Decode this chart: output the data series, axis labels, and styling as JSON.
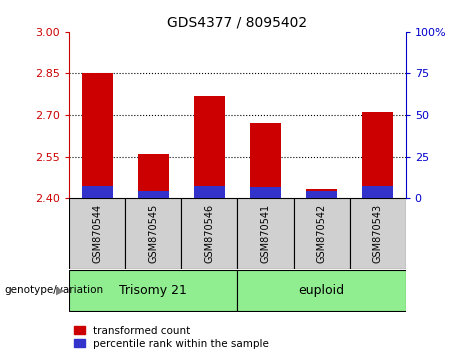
{
  "title": "GDS4377 / 8095402",
  "categories": [
    "GSM870544",
    "GSM870545",
    "GSM870546",
    "GSM870541",
    "GSM870542",
    "GSM870543"
  ],
  "red_tops": [
    2.85,
    2.56,
    2.77,
    2.67,
    2.435,
    2.71
  ],
  "blue_tops": [
    2.445,
    2.425,
    2.445,
    2.44,
    2.425,
    2.445
  ],
  "base": 2.4,
  "ylim_left": [
    2.4,
    3.0
  ],
  "ylim_right": [
    0,
    100
  ],
  "yticks_left": [
    2.4,
    2.55,
    2.7,
    2.85,
    3.0
  ],
  "yticks_right": [
    0,
    25,
    50,
    75,
    100
  ],
  "ytick_labels_right": [
    "0",
    "25",
    "50",
    "75",
    "100%"
  ],
  "red_color": "#cc0000",
  "blue_color": "#3333cc",
  "bar_width": 0.55,
  "groups": [
    {
      "label": "Trisomy 21",
      "indices": [
        0,
        1,
        2
      ],
      "color": "#90ee90"
    },
    {
      "label": "euploid",
      "indices": [
        3,
        4,
        5
      ],
      "color": "#90ee90"
    }
  ],
  "group_label_prefix": "genotype/variation",
  "legend_items": [
    {
      "color": "#cc0000",
      "label": "transformed count"
    },
    {
      "color": "#3333cc",
      "label": "percentile rank within the sample"
    }
  ],
  "left_axis_color": "#cc0000",
  "right_axis_color": "#0000cc",
  "title_fontsize": 10
}
